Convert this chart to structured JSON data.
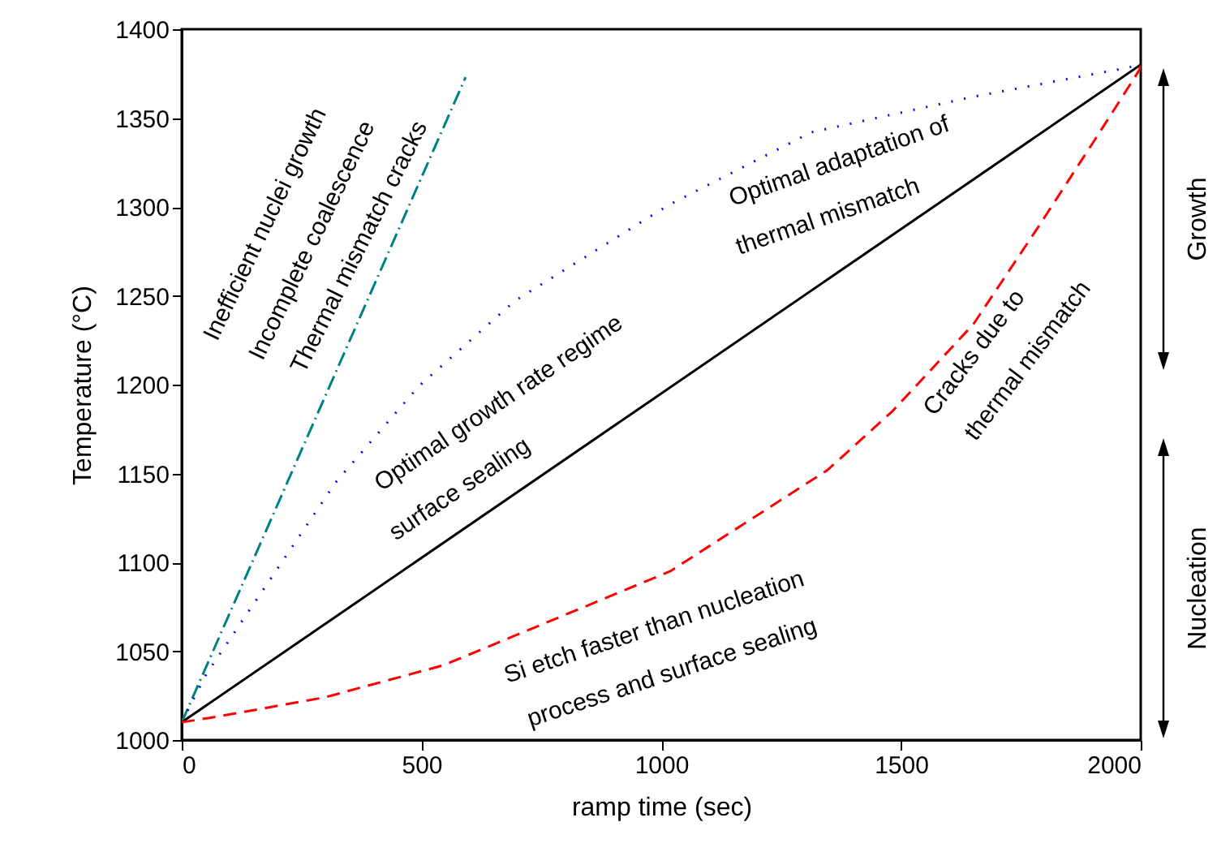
{
  "chart_data": {
    "type": "line",
    "xlabel": "ramp time (sec)",
    "ylabel": "Temperature (°C)",
    "xlim": [
      0,
      2000
    ],
    "ylim": [
      1000,
      1400
    ],
    "xticks": [
      0,
      500,
      1000,
      1500,
      2000
    ],
    "yticks": [
      1000,
      1050,
      1100,
      1150,
      1200,
      1250,
      1300,
      1350,
      1400
    ],
    "grid": false,
    "marker": "none",
    "series": [
      {
        "color": "#008080",
        "line_style": "dashdot",
        "x": [
          0,
          592
        ],
        "values": [
          1010,
          1373
        ]
      },
      {
        "color": "#0000ff",
        "line_style": "dotted",
        "x": [
          0,
          51,
          321,
          494,
          694,
          1015,
          1313,
          1651,
          1966,
          2000
        ],
        "values": [
          1010,
          1037,
          1145,
          1199,
          1247,
          1301,
          1342,
          1362,
          1378,
          1380
        ]
      },
      {
        "color": "#000000",
        "line_style": "solid",
        "x": [
          0,
          2000
        ],
        "values": [
          1010,
          1380
        ]
      },
      {
        "color": "#ff0000",
        "line_style": "dashed",
        "x": [
          0,
          71,
          298,
          545,
          1019,
          1347,
          1482,
          1651,
          1787,
          1912,
          1997,
          2000
        ],
        "values": [
          1010,
          1013,
          1024,
          1042,
          1095,
          1152,
          1185,
          1234,
          1289,
          1341,
          1377,
          1380
        ]
      }
    ],
    "annotations": [
      "Inefficient nuclei growth",
      "Incomplete coalescence",
      "Thermal mismatch cracks",
      "Optimal growth rate regime",
      "surface sealing",
      "Optimal adaptation of",
      "thermal mismatch",
      "Si etch faster than nucleation",
      "process and surface sealing",
      "Cracks due to",
      "thermal mismatch",
      "Growth",
      "Nucleation"
    ]
  }
}
